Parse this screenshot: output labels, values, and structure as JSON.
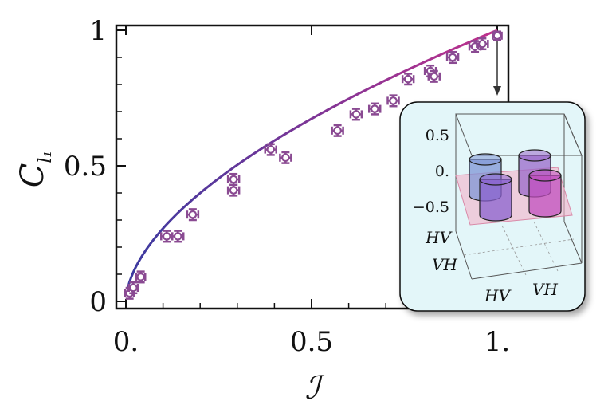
{
  "chart_data": {
    "type": "scatter",
    "xlabel": "ℐ",
    "ylabel": "C",
    "ylabel_subscript": "l₁",
    "xlim": [
      0,
      1
    ],
    "ylim": [
      0,
      1
    ],
    "x_ticks": [
      {
        "value": 0,
        "label": "0."
      },
      {
        "value": 0.5,
        "label": "0.5"
      },
      {
        "value": 1,
        "label": "1."
      }
    ],
    "y_ticks": [
      {
        "value": 0,
        "label": "0"
      },
      {
        "value": 0.5,
        "label": "0.5"
      },
      {
        "value": 1,
        "label": "1"
      }
    ],
    "grid": false,
    "series": [
      {
        "points": [
          {
            "x": 0.01,
            "y": 0.03,
            "xerr": 0.012,
            "yerr": 0.02
          },
          {
            "x": 0.02,
            "y": 0.05,
            "xerr": 0.012,
            "yerr": 0.02
          },
          {
            "x": 0.04,
            "y": 0.09,
            "xerr": 0.012,
            "yerr": 0.02
          },
          {
            "x": 0.11,
            "y": 0.24,
            "xerr": 0.015,
            "yerr": 0.02
          },
          {
            "x": 0.14,
            "y": 0.24,
            "xerr": 0.015,
            "yerr": 0.02
          },
          {
            "x": 0.18,
            "y": 0.32,
            "xerr": 0.015,
            "yerr": 0.02
          },
          {
            "x": 0.29,
            "y": 0.45,
            "xerr": 0.015,
            "yerr": 0.02
          },
          {
            "x": 0.29,
            "y": 0.41,
            "xerr": 0.015,
            "yerr": 0.02
          },
          {
            "x": 0.39,
            "y": 0.56,
            "xerr": 0.015,
            "yerr": 0.02
          },
          {
            "x": 0.43,
            "y": 0.53,
            "xerr": 0.015,
            "yerr": 0.02
          },
          {
            "x": 0.57,
            "y": 0.63,
            "xerr": 0.015,
            "yerr": 0.02
          },
          {
            "x": 0.62,
            "y": 0.69,
            "xerr": 0.015,
            "yerr": 0.02
          },
          {
            "x": 0.67,
            "y": 0.71,
            "xerr": 0.015,
            "yerr": 0.02
          },
          {
            "x": 0.72,
            "y": 0.74,
            "xerr": 0.015,
            "yerr": 0.02
          },
          {
            "x": 0.76,
            "y": 0.82,
            "xerr": 0.015,
            "yerr": 0.02
          },
          {
            "x": 0.82,
            "y": 0.85,
            "xerr": 0.015,
            "yerr": 0.02
          },
          {
            "x": 0.83,
            "y": 0.83,
            "xerr": 0.015,
            "yerr": 0.02
          },
          {
            "x": 0.88,
            "y": 0.9,
            "xerr": 0.015,
            "yerr": 0.02
          },
          {
            "x": 0.94,
            "y": 0.94,
            "xerr": 0.015,
            "yerr": 0.02
          },
          {
            "x": 0.96,
            "y": 0.95,
            "xerr": 0.015,
            "yerr": 0.02
          },
          {
            "x": 1.0,
            "y": 0.98,
            "xerr": 0.012,
            "yerr": 0.015
          }
        ]
      }
    ],
    "fit_curve": {
      "formula": "y = x^0.57",
      "exponent": 0.57
    },
    "colors": {
      "start": "#3b3aa0",
      "end": "#c0308c",
      "markers": "#8a4a92"
    },
    "inset": {
      "type": "bar3d",
      "z_ticks": [
        "0.5",
        "0.",
        "−0.5"
      ],
      "row_labels": [
        "HV",
        "VH"
      ],
      "col_labels": [
        "HV",
        "VH"
      ],
      "values": [
        {
          "row": "HV",
          "col": "HV",
          "value": 0.5,
          "color": "#7f96d6"
        },
        {
          "row": "HV",
          "col": "VH",
          "value": 0.5,
          "color": "#9a68c9"
        },
        {
          "row": "VH",
          "col": "HV",
          "value": 0.5,
          "color": "#8a62cf"
        },
        {
          "row": "VH",
          "col": "VH",
          "value": 0.5,
          "color": "#c04fbf"
        }
      ],
      "background": "#e3f6f9"
    }
  }
}
